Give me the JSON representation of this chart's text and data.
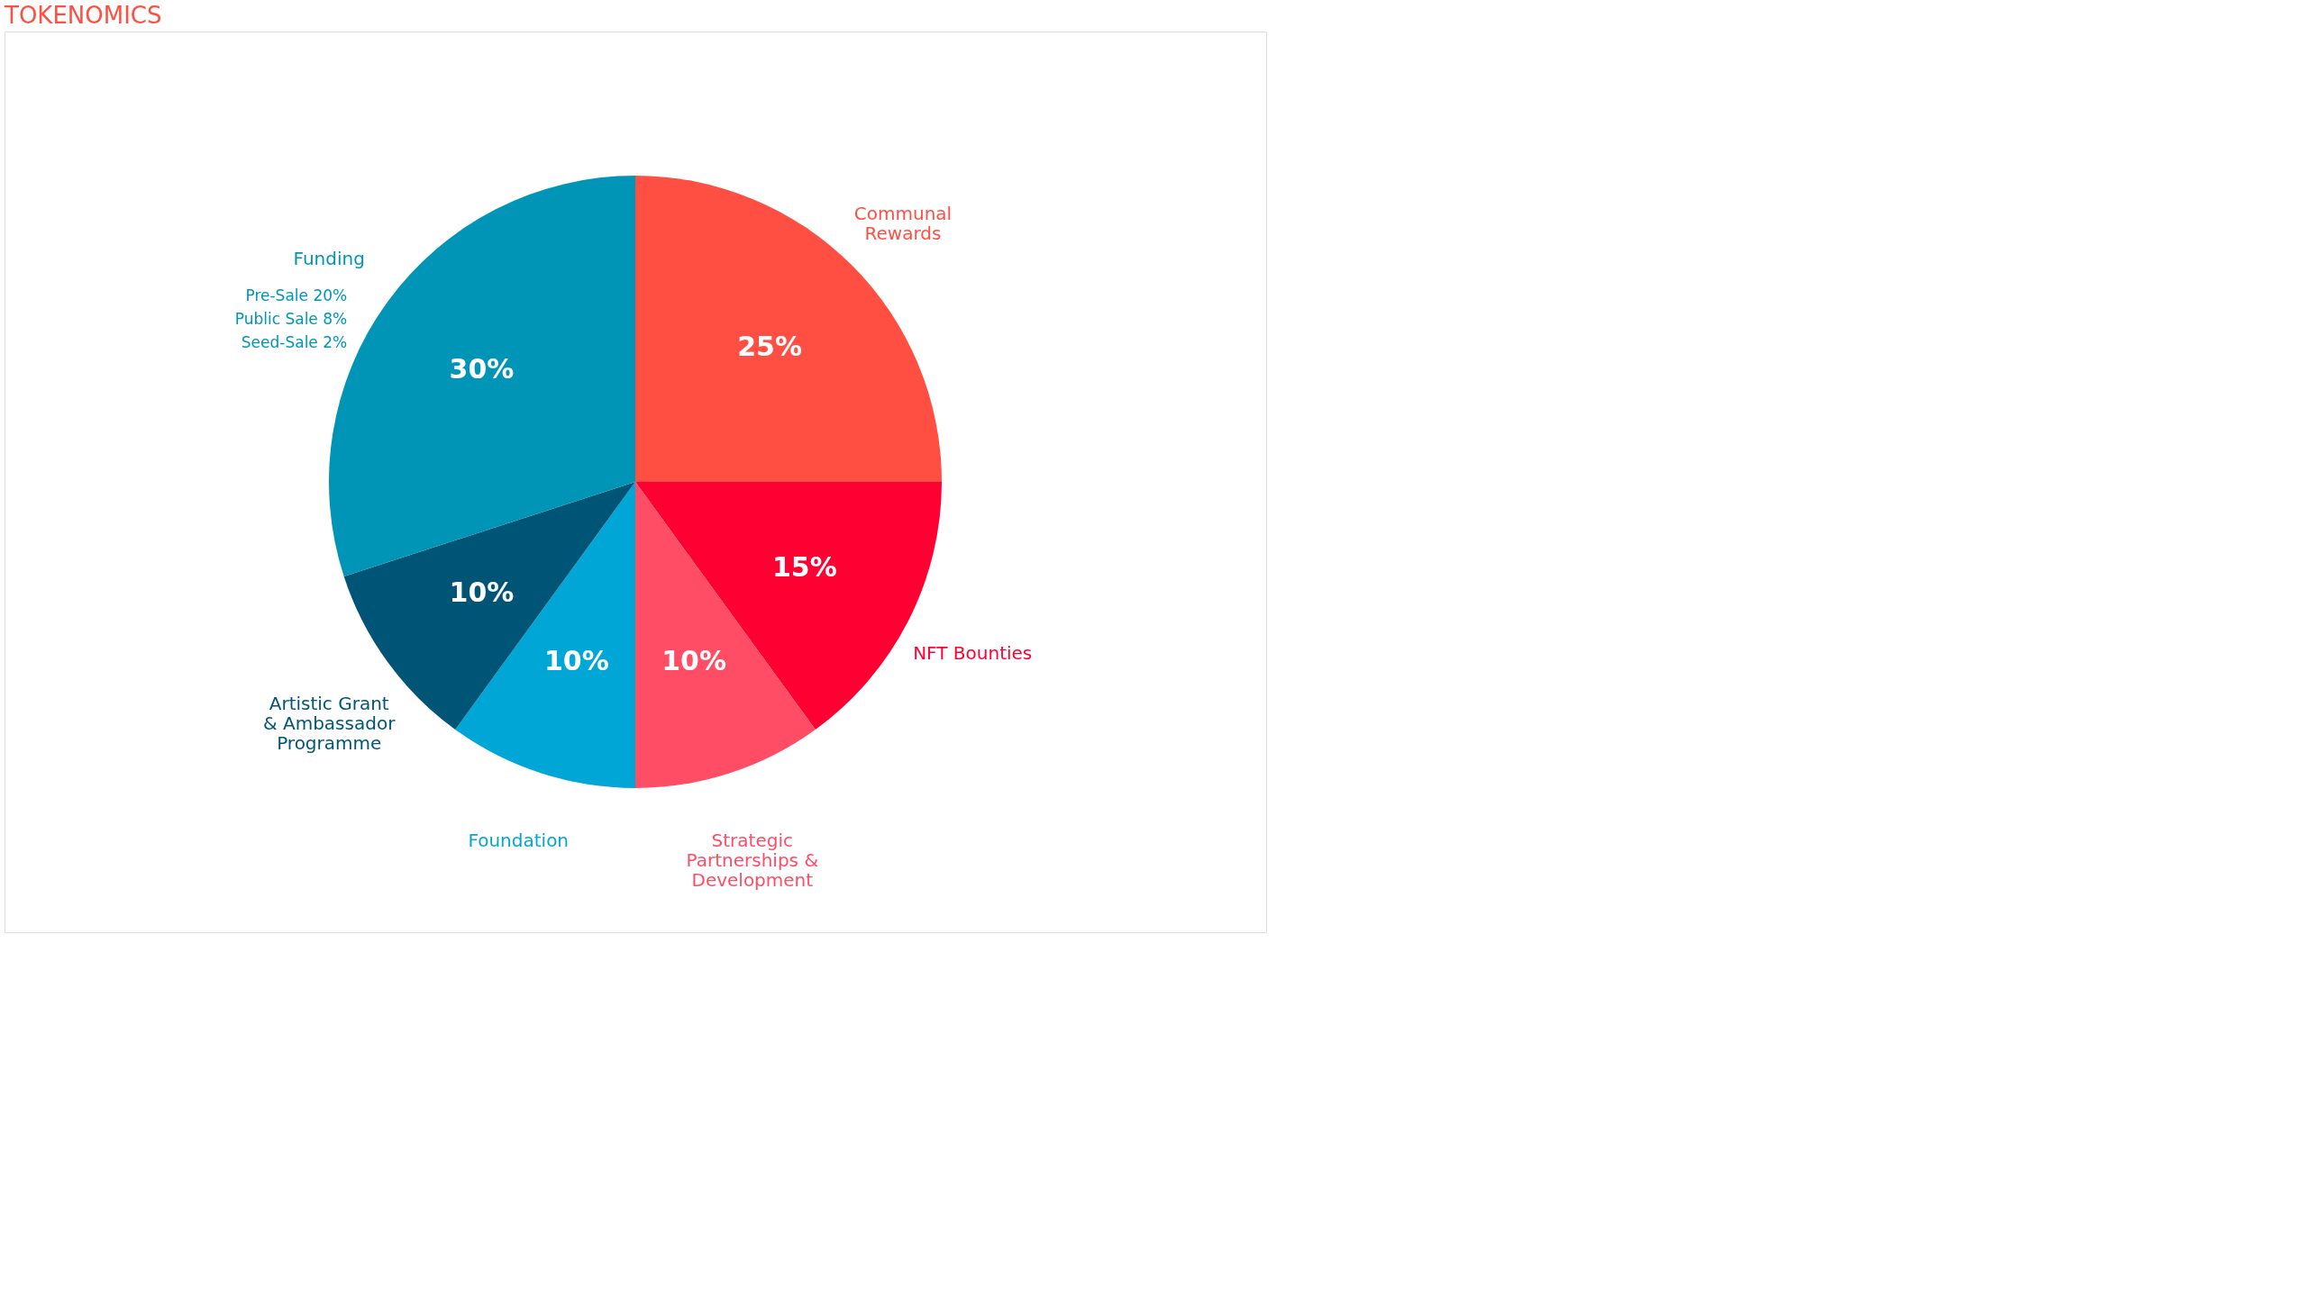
{
  "chart_data": {
    "type": "pie",
    "title": "TOKENOMICS",
    "categories": [
      "Communal\nRewards",
      "NFT Bounties",
      "Strategic\nPartnerships &\nDevelopment",
      "Foundation",
      "Artistic Grant\n& Ambassador\nProgramme",
      "Funding"
    ],
    "values": [
      25,
      15,
      10,
      10,
      10,
      30
    ],
    "value_labels": [
      "25%",
      "15%",
      "10%",
      "10%",
      "10%",
      "30%"
    ],
    "colors": [
      "#ff4f43",
      "#ff0032",
      "#ff4d66",
      "#00a6d6",
      "#005577",
      "#0095b6"
    ],
    "annotations": [
      "Pre-Sale 20%",
      "Public Sale 8%",
      "Seed-Sale 2%"
    ]
  }
}
